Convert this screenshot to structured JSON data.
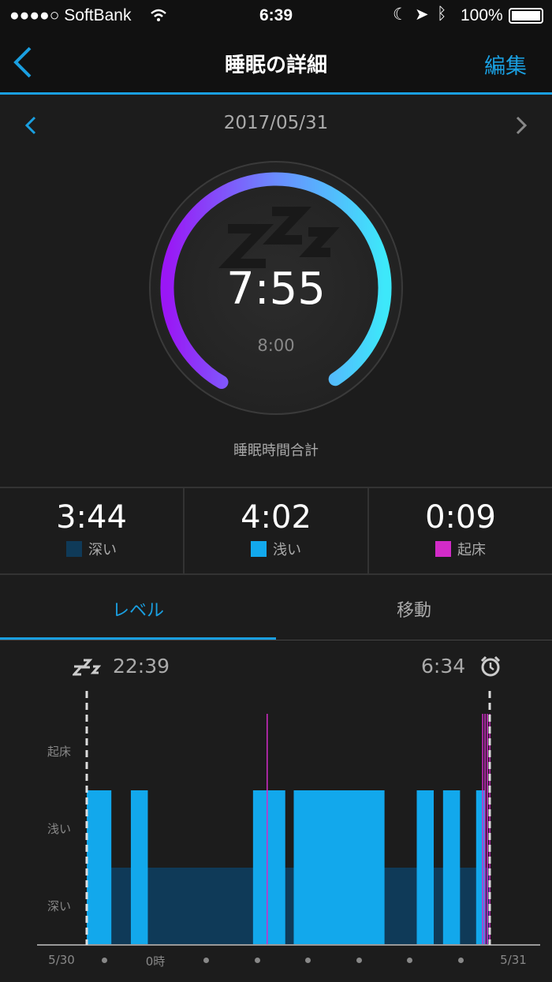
{
  "status_bar": {
    "carrier": "●●●●○ SoftBank",
    "time": "6:39",
    "battery": "100%"
  },
  "nav": {
    "title": "睡眠の詳細",
    "edit_label": "編集"
  },
  "date": "2017/05/31",
  "ring": {
    "total": "7:55",
    "goal": "8:00",
    "progress": 0.99,
    "caption": "睡眠時間合計"
  },
  "stats": [
    {
      "value": "3:44",
      "label": "深い",
      "color": "#0f3a58"
    },
    {
      "value": "4:02",
      "label": "浅い",
      "color": "#12a8ec"
    },
    {
      "value": "0:09",
      "label": "起床",
      "color": "#d22bc8"
    }
  ],
  "tabs": [
    {
      "label": "レベル",
      "active": true
    },
    {
      "label": "移動",
      "active": false
    }
  ],
  "chart_data": {
    "type": "timeline",
    "start": "22:39",
    "end": "6:34",
    "y_labels": [
      "起床",
      "浅い",
      "深い"
    ],
    "x_labels": {
      "left": "5/30",
      "midnight": "0時",
      "right": "5/31"
    },
    "hour_dots": [
      "23:00",
      "1:00",
      "2:00",
      "3:00",
      "4:00",
      "5:00",
      "6:00"
    ],
    "baseline_level": "深い",
    "light": [
      [
        "22:39",
        "23:08"
      ],
      [
        "23:31",
        "23:51"
      ],
      [
        "1:55",
        "2:33"
      ],
      [
        "2:43",
        "4:30"
      ],
      [
        "5:08",
        "5:28"
      ],
      [
        "5:39",
        "5:59"
      ],
      [
        "6:18",
        "6:28"
      ]
    ],
    "awake": [
      [
        "2:11",
        "2:13"
      ],
      [
        "6:25",
        "6:34"
      ]
    ],
    "colors": {
      "deep": "#0f3a58",
      "light": "#12a8ec",
      "awake": "#d22bc8"
    }
  }
}
